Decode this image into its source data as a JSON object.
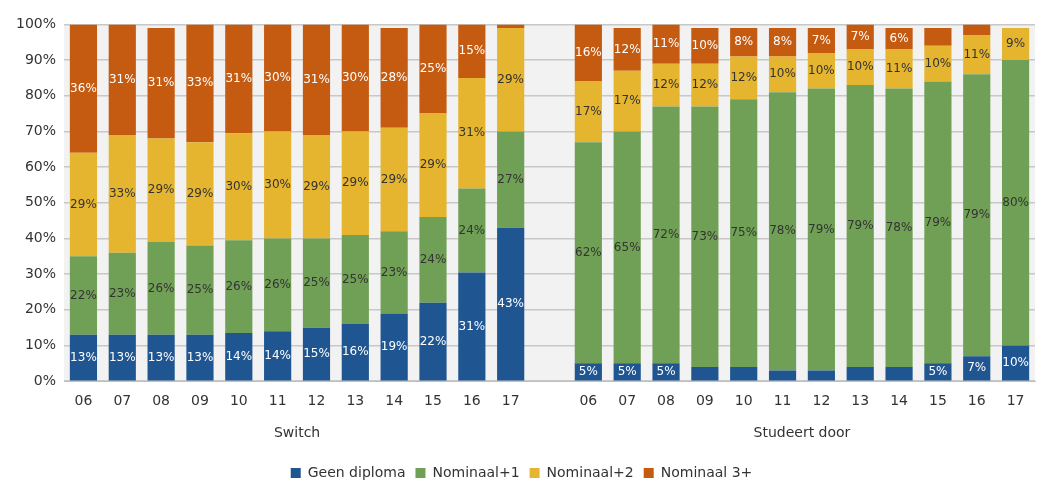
{
  "chart_data": {
    "type": "bar",
    "stacked": true,
    "categories": [
      "06",
      "07",
      "08",
      "09",
      "10",
      "11",
      "12",
      "13",
      "14",
      "15",
      "16",
      "17",
      null,
      "06",
      "07",
      "08",
      "09",
      "10",
      "11",
      "12",
      "13",
      "14",
      "15",
      "16",
      "17"
    ],
    "series": [
      {
        "name": "Geen diploma",
        "color": "#1f5591",
        "values": [
          13,
          13,
          13,
          13,
          13.5,
          14,
          15,
          16,
          19,
          22,
          30.5,
          43,
          null,
          5,
          5,
          5,
          4,
          4,
          3,
          3,
          4,
          4,
          5,
          7,
          10
        ],
        "value_labels": [
          "13%",
          "13%",
          "13%",
          "13%",
          "14%",
          "14%",
          "15%",
          "16%",
          "19%",
          "22%",
          "31%",
          "43%",
          null,
          "5%",
          "5%",
          "5%",
          null,
          null,
          null,
          null,
          null,
          null,
          "5%",
          "7%",
          "10%"
        ]
      },
      {
        "name": "Nominaal+1",
        "color": "#70a055",
        "values": [
          22,
          23,
          26,
          25,
          26,
          26,
          25,
          25,
          23,
          24,
          23.5,
          27,
          null,
          62,
          65,
          72,
          73,
          75,
          78,
          79,
          79,
          78,
          79,
          79,
          80
        ],
        "value_labels": [
          "22%",
          "23%",
          "26%",
          "25%",
          "26%",
          "26%",
          "25%",
          "25%",
          "23%",
          "24%",
          "24%",
          "27%",
          null,
          "62%",
          "65%",
          "72%",
          "73%",
          "75%",
          "78%",
          "79%",
          "79%",
          "78%",
          "79%",
          "79%",
          "80%"
        ]
      },
      {
        "name": "Nominaal+2",
        "color": "#e5b530",
        "values": [
          29,
          33,
          29,
          29,
          30,
          30,
          29,
          29,
          29,
          29,
          31,
          29,
          null,
          17,
          17,
          12,
          12,
          12,
          10,
          10,
          10,
          11,
          10,
          11,
          9
        ],
        "value_labels": [
          "29%",
          "33%",
          "29%",
          "29%",
          "30%",
          "30%",
          "29%",
          "29%",
          "29%",
          "29%",
          "31%",
          "29%",
          null,
          "17%",
          "17%",
          "12%",
          "12%",
          "12%",
          "10%",
          "10%",
          "10%",
          "11%",
          "10%",
          "11%",
          "9%"
        ]
      },
      {
        "name": "Nominaal 3+",
        "color": "#c55a11",
        "values": [
          36,
          31,
          31,
          33,
          30.5,
          30,
          31,
          30,
          28,
          25,
          15,
          1,
          null,
          16,
          12,
          11,
          10,
          8,
          8,
          7,
          7,
          6,
          5,
          3,
          null
        ],
        "value_labels": [
          "36%",
          "31%",
          "31%",
          "33%",
          "31%",
          "30%",
          "31%",
          "30%",
          "28%",
          "25%",
          "15%",
          null,
          null,
          "16%",
          "12%",
          "11%",
          "10%",
          "8%",
          "8%",
          "7%",
          "7%",
          "6%",
          null,
          null,
          null
        ]
      }
    ],
    "ylim": [
      0,
      100
    ],
    "yticks": [
      {
        "value": 0,
        "label": "0%"
      },
      {
        "value": 10,
        "label": "10%"
      },
      {
        "value": 20,
        "label": "20%"
      },
      {
        "value": 30,
        "label": "30%"
      },
      {
        "value": 40,
        "label": "40%"
      },
      {
        "value": 50,
        "label": "50%"
      },
      {
        "value": 60,
        "label": "60%"
      },
      {
        "value": 70,
        "label": "70%"
      },
      {
        "value": 80,
        "label": "80%"
      },
      {
        "value": 90,
        "label": "90%"
      },
      {
        "value": 100,
        "label": "100%"
      }
    ],
    "grid": "y",
    "legend": "bottom",
    "annotations": [
      "Switch",
      "Studeert door"
    ]
  }
}
